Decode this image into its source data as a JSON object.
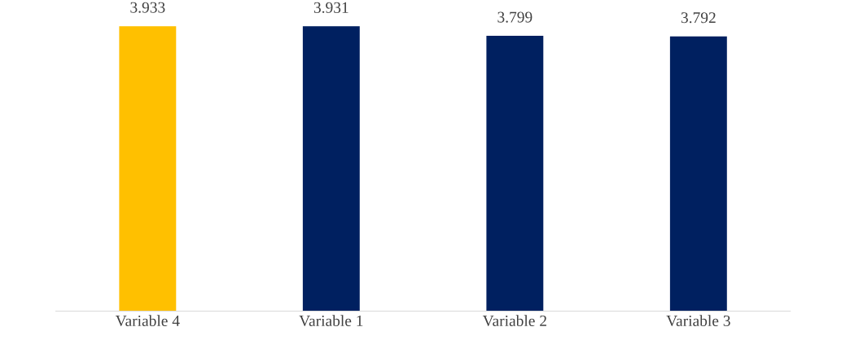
{
  "chart_data": {
    "type": "bar",
    "categories": [
      "Variable 4",
      "Variable 1",
      "Variable 2",
      "Variable 3"
    ],
    "values": [
      3.933,
      3.931,
      3.799,
      3.792
    ],
    "colors": [
      "#ffc000",
      "#002060",
      "#002060",
      "#002060"
    ],
    "data_labels": true,
    "tick_labels": "x",
    "grid": false,
    "legend": false
  }
}
